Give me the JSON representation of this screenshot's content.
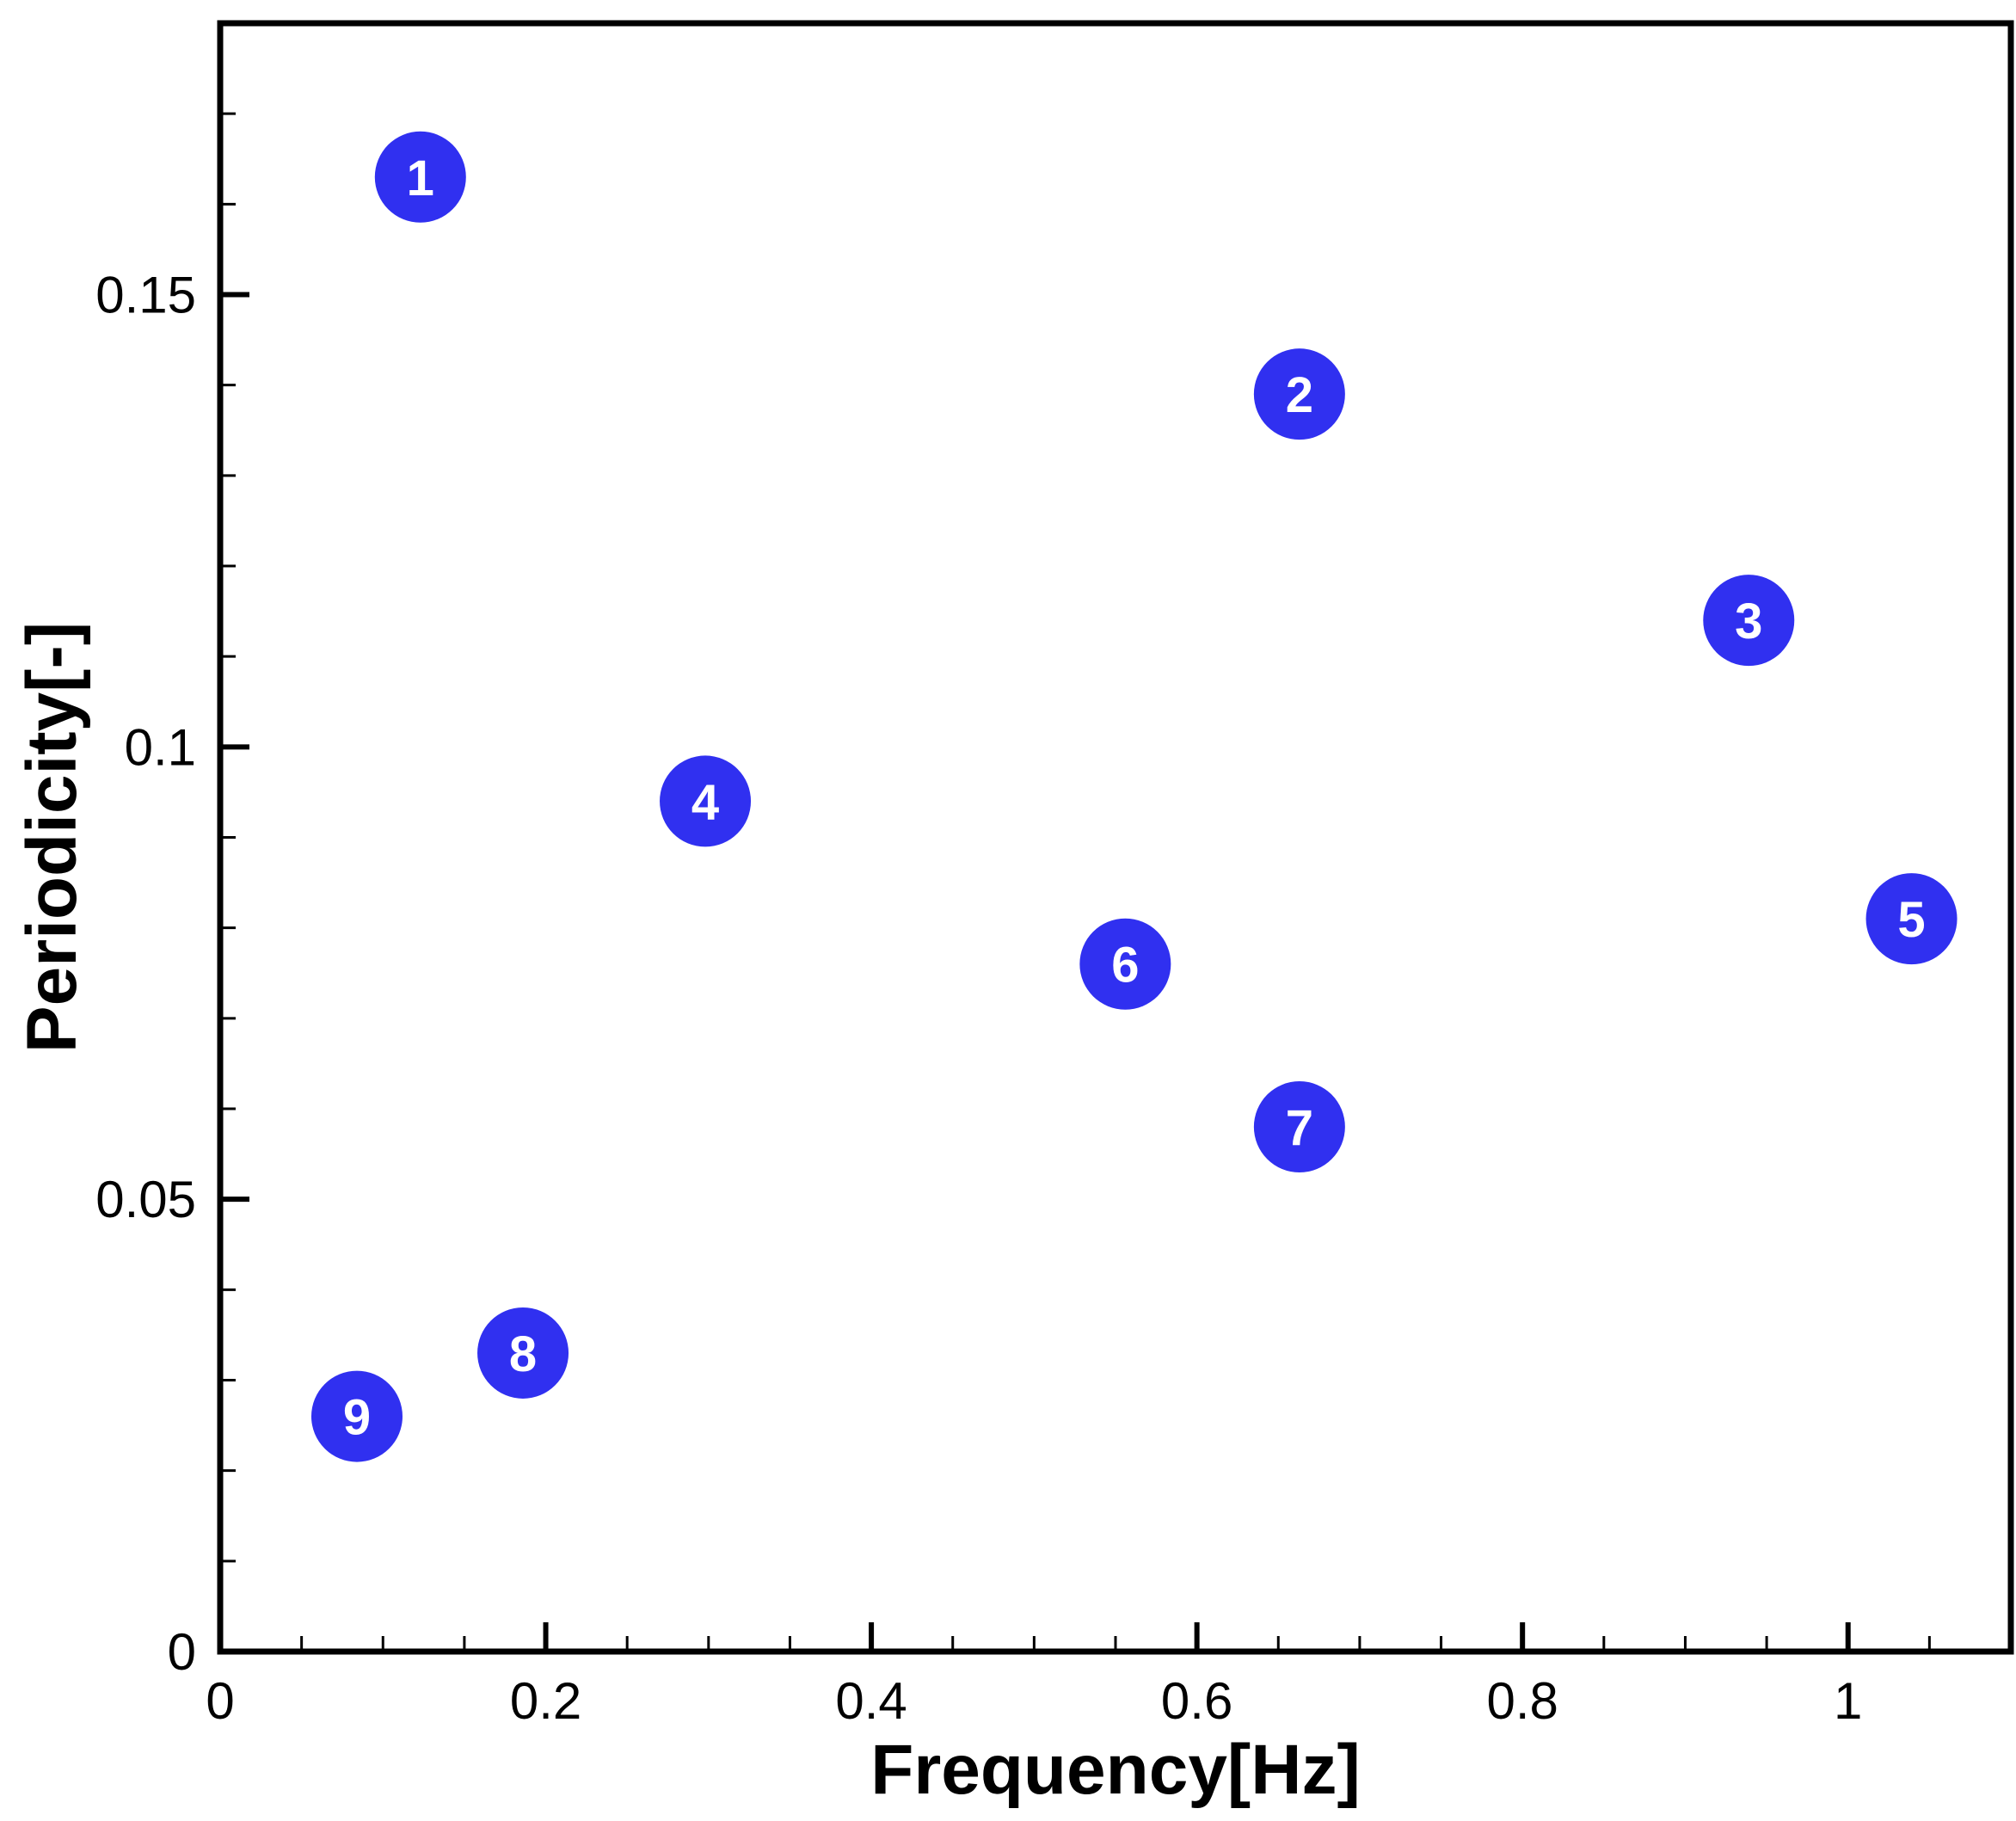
{
  "chart_data": {
    "type": "scatter",
    "title": "",
    "xlabel": "Frequency[Hz]",
    "ylabel": "Periodicity[-]",
    "xlim": [
      0,
      1.1
    ],
    "ylim": [
      0,
      0.18
    ],
    "x_ticks": [
      0,
      0.2,
      0.4,
      0.6,
      0.8,
      1
    ],
    "x_tick_labels": [
      "0",
      "0.2",
      "0.4",
      "0.6",
      "0.8",
      "1"
    ],
    "y_ticks": [
      0,
      0.05,
      0.1,
      0.15
    ],
    "y_tick_labels": [
      "0",
      "0.05",
      "0.1",
      "0.15"
    ],
    "grid": false,
    "marker_color": "#3030f0",
    "points": [
      {
        "label": "1",
        "x": 0.123,
        "y": 0.163
      },
      {
        "label": "2",
        "x": 0.663,
        "y": 0.139
      },
      {
        "label": "3",
        "x": 0.939,
        "y": 0.114
      },
      {
        "label": "4",
        "x": 0.298,
        "y": 0.094
      },
      {
        "label": "5",
        "x": 1.039,
        "y": 0.081
      },
      {
        "label": "6",
        "x": 0.556,
        "y": 0.076
      },
      {
        "label": "7",
        "x": 0.663,
        "y": 0.058
      },
      {
        "label": "8",
        "x": 0.186,
        "y": 0.033
      },
      {
        "label": "9",
        "x": 0.084,
        "y": 0.026
      }
    ]
  }
}
